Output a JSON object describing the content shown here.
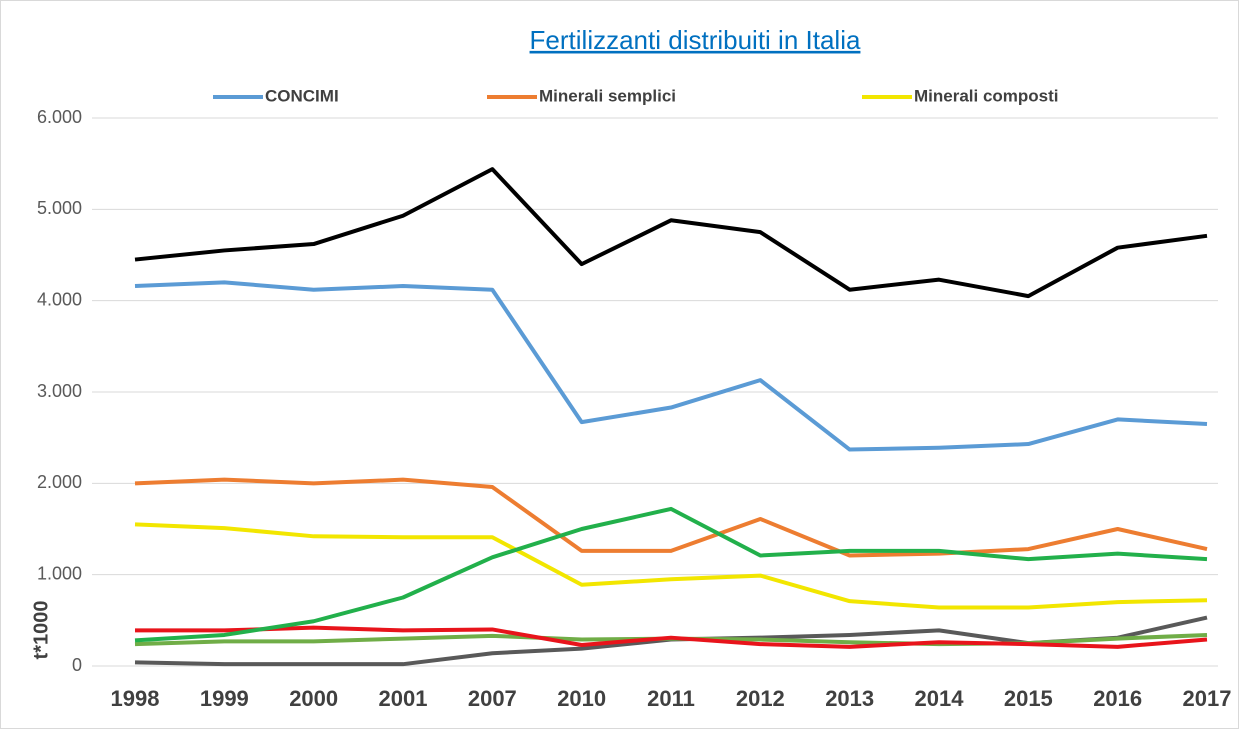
{
  "chart_data": {
    "type": "line",
    "title": "Fertilizzanti distribuiti in Italia",
    "y_label": "t*1000",
    "categories": [
      "1998",
      "1999",
      "2000",
      "2001",
      "2007",
      "2010",
      "2011",
      "2012",
      "2013",
      "2014",
      "2015",
      "2016",
      "2017"
    ],
    "series": [
      {
        "name": "CONCIMI",
        "color": "#5b9bd5",
        "values": [
          4160,
          4200,
          4120,
          4160,
          4120,
          2670,
          2830,
          3130,
          2370,
          2390,
          2430,
          2700,
          2650
        ]
      },
      {
        "name": "Minerali semplici",
        "color": "#ed7d31",
        "values": [
          2000,
          2040,
          2000,
          2040,
          1960,
          1260,
          1260,
          1610,
          1210,
          1230,
          1280,
          1500,
          1280
        ]
      },
      {
        "name": "Minerali composti",
        "color": "#f2e600",
        "values": [
          1550,
          1510,
          1420,
          1410,
          1410,
          890,
          950,
          990,
          710,
          640,
          640,
          700,
          720
        ]
      },
      {
        "color": "#000000",
        "values": [
          4450,
          4550,
          4620,
          4930,
          5440,
          4400,
          4880,
          4750,
          4120,
          4230,
          4050,
          4580,
          4710
        ]
      },
      {
        "color": "#22b04b",
        "values": [
          280,
          340,
          490,
          750,
          1190,
          1500,
          1720,
          1210,
          1260,
          1260,
          1170,
          1230,
          1170
        ]
      },
      {
        "color": "#70ad47",
        "values": [
          240,
          270,
          270,
          300,
          330,
          290,
          300,
          290,
          260,
          240,
          250,
          300,
          340
        ]
      },
      {
        "color": "#595959",
        "values": [
          40,
          20,
          20,
          20,
          140,
          190,
          290,
          310,
          340,
          390,
          250,
          310,
          530
        ]
      },
      {
        "color": "#e8141b",
        "values": [
          390,
          390,
          420,
          390,
          400,
          230,
          310,
          240,
          210,
          260,
          240,
          210,
          290
        ]
      }
    ],
    "ylim": [
      0,
      6000
    ],
    "yticks": [
      0,
      {
        "value": 1000,
        "label": "1.000"
      },
      {
        "value": 2000,
        "label": "2.000"
      },
      {
        "value": 3000,
        "label": "3.000"
      },
      {
        "value": 4000,
        "label": "4.000"
      },
      {
        "value": 5000,
        "label": "5.000"
      },
      {
        "value": 6000,
        "label": "6.000"
      }
    ],
    "grid": true,
    "legend": "top"
  }
}
